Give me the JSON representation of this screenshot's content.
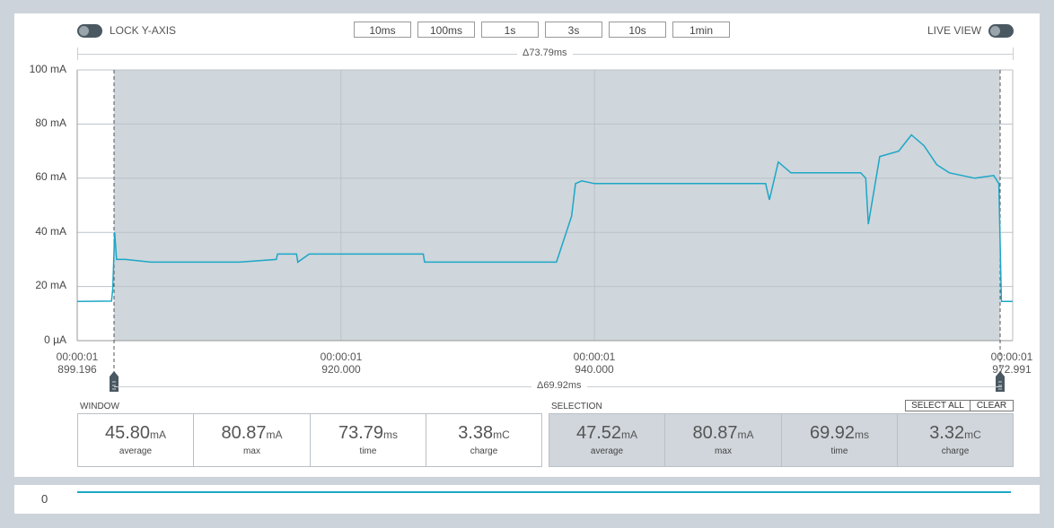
{
  "controls": {
    "lock_y_axis_label": "LOCK Y-AXIS",
    "live_view_label": "LIVE VIEW",
    "time_buttons": [
      "10ms",
      "100ms",
      "1s",
      "3s",
      "10s",
      "1min"
    ]
  },
  "chart": {
    "window_delta": "Δ73.79ms",
    "selection_delta": "Δ69.92ms",
    "y_ticks": [
      "100 mA",
      "80 mA",
      "60 mA",
      "40 mA",
      "20 mA",
      "0 µA"
    ],
    "x_ticks": [
      {
        "time": "00:00:01",
        "ms": "899.196"
      },
      {
        "time": "00:00:01",
        "ms": "920.000"
      },
      {
        "time": "00:00:01",
        "ms": "940.000"
      },
      {
        "time": "00:00:01",
        "ms": "972.991"
      }
    ],
    "colors": {
      "trace": "#1ca7c6",
      "selection": "#cfd6dc",
      "grid": "#bcc3c9"
    }
  },
  "chart_data": {
    "type": "line",
    "xlabel": "",
    "ylabel": "",
    "ylim": [
      0,
      100
    ],
    "xlim": [
      899.196,
      972.991
    ],
    "selection_range": [
      902.1,
      972.0
    ],
    "series": [
      {
        "x": [
          899.196,
          901.9,
          902.0,
          902.15,
          902.3,
          903.0,
          905.0,
          908.0,
          912.0,
          914.9,
          915.0,
          916.5,
          916.6,
          917.5,
          918.0,
          921.0,
          924.0,
          926.5,
          926.6,
          929.0,
          932.0,
          935.0,
          937.0,
          938.2,
          938.5,
          939.0,
          940.0,
          942.0,
          945.0,
          948.0,
          951.0,
          953.5,
          953.8,
          954.5,
          955.5,
          958.0,
          961.0,
          961.4,
          961.6,
          962.5,
          964.0,
          965.0,
          966.0,
          967.0,
          968.0,
          970.0,
          971.5,
          971.9,
          972.1,
          972.991
        ],
        "y": [
          14.5,
          14.6,
          19,
          40,
          30,
          30,
          29,
          29,
          29,
          30,
          32,
          32,
          29,
          32,
          32,
          32,
          32,
          32,
          29,
          29,
          29,
          29,
          29,
          46,
          58,
          59,
          58,
          58,
          58,
          58,
          58,
          58,
          52,
          66,
          62,
          62,
          62,
          60,
          43,
          68,
          70,
          76,
          72,
          65,
          62,
          60,
          61,
          58,
          14.5,
          14.5
        ]
      }
    ]
  },
  "window": {
    "title": "WINDOW",
    "stats": [
      {
        "value": "45.80",
        "unit": "mA",
        "label": "average"
      },
      {
        "value": "80.87",
        "unit": "mA",
        "label": "max"
      },
      {
        "value": "73.79",
        "unit": "ms",
        "label": "time"
      },
      {
        "value": "3.38",
        "unit": "mC",
        "label": "charge"
      }
    ]
  },
  "selection": {
    "title": "SELECTION",
    "select_all_label": "SELECT ALL",
    "clear_label": "CLEAR",
    "stats": [
      {
        "value": "47.52",
        "unit": "mA",
        "label": "average"
      },
      {
        "value": "80.87",
        "unit": "mA",
        "label": "max"
      },
      {
        "value": "69.92",
        "unit": "ms",
        "label": "time"
      },
      {
        "value": "3.32",
        "unit": "mC",
        "label": "charge"
      }
    ]
  },
  "minimap": {
    "value_label": "0"
  }
}
